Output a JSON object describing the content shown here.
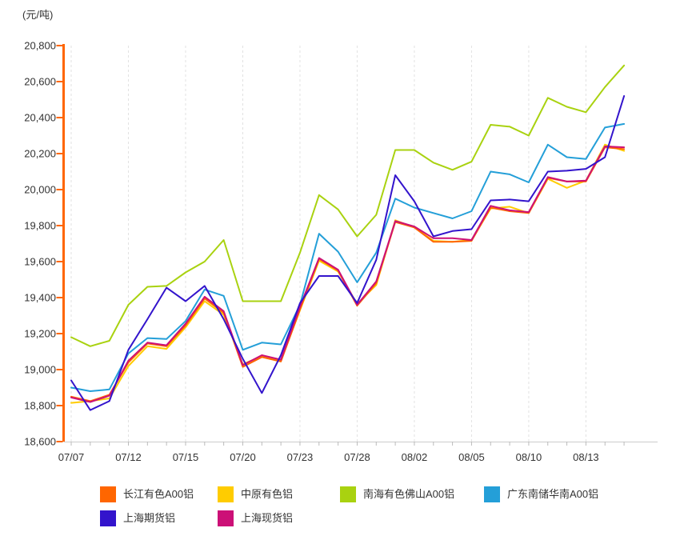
{
  "chart_data": {
    "type": "line",
    "unit_label": "(元/吨)",
    "x": [
      "07/07",
      "07/08",
      "07/09",
      "07/12",
      "07/13",
      "07/14",
      "07/15",
      "07/16",
      "07/19",
      "07/20",
      "07/21",
      "07/22",
      "07/23",
      "07/26",
      "07/27",
      "07/28",
      "07/29",
      "07/30",
      "08/02",
      "08/03",
      "08/04",
      "08/05",
      "08/06",
      "08/09",
      "08/10",
      "08/11",
      "08/12",
      "08/13",
      "08/16",
      "08/17"
    ],
    "x_tick_labels": [
      "07/07",
      "07/12",
      "07/15",
      "07/20",
      "07/23",
      "07/28",
      "08/02",
      "08/05",
      "08/10",
      "08/13"
    ],
    "x_tick_indices": [
      0,
      3,
      6,
      9,
      12,
      15,
      18,
      21,
      24,
      27
    ],
    "y_tick_labels": [
      "20,800",
      "20,600",
      "20,400",
      "20,200",
      "20,000",
      "19,800",
      "19,600",
      "19,400",
      "19,200",
      "19,000",
      "18,800",
      "18,600"
    ],
    "ylim": [
      18600,
      20800
    ],
    "ytick_step": 200,
    "grid": "vertical-dashed",
    "axis_color": "#ff6600",
    "legend_position": "bottom-left",
    "series": [
      {
        "name": "长江有色A00铝",
        "color": "#ff6600",
        "values": [
          18850,
          18825,
          18860,
          19040,
          19145,
          19130,
          19245,
          19395,
          19315,
          19015,
          19070,
          19045,
          19335,
          19615,
          19550,
          19355,
          19480,
          19820,
          19790,
          19710,
          19710,
          19715,
          19900,
          19880,
          19870,
          20065,
          20045,
          20045,
          20235,
          20225
        ]
      },
      {
        "name": "中原有色铝",
        "color": "#ffcc00",
        "values": [
          18815,
          18825,
          18840,
          19020,
          19130,
          19115,
          19235,
          19380,
          19305,
          19030,
          19075,
          19050,
          19330,
          19605,
          19545,
          19365,
          19470,
          19830,
          19790,
          19715,
          19710,
          19720,
          19895,
          19905,
          19870,
          20060,
          20010,
          20050,
          20250,
          20215
        ]
      },
      {
        "name": "南海有色佛山A00铝",
        "color": "#a9d210",
        "values": [
          19180,
          19130,
          19160,
          19360,
          19460,
          19465,
          19540,
          19600,
          19720,
          19380,
          19380,
          19380,
          19650,
          19970,
          19890,
          19740,
          19860,
          20220,
          20220,
          20150,
          20110,
          20155,
          20360,
          20350,
          20300,
          20510,
          20460,
          20430,
          20570,
          20690
        ]
      },
      {
        "name": "广东南储华南A00铝",
        "color": "#249fd8",
        "values": [
          18900,
          18880,
          18890,
          19090,
          19175,
          19170,
          19270,
          19445,
          19410,
          19110,
          19150,
          19140,
          19360,
          19755,
          19655,
          19485,
          19650,
          19950,
          19900,
          19870,
          19840,
          19880,
          20100,
          20085,
          20040,
          20250,
          20180,
          20170,
          20345,
          20365
        ]
      },
      {
        "name": "上海期货铝",
        "color": "#3314cc",
        "values": [
          18940,
          18775,
          18825,
          19110,
          19280,
          19455,
          19380,
          19465,
          19280,
          19060,
          18870,
          19080,
          19370,
          19520,
          19520,
          19370,
          19610,
          20080,
          19935,
          19740,
          19770,
          19780,
          19940,
          19945,
          19935,
          20100,
          20105,
          20115,
          20180,
          20520
        ]
      },
      {
        "name": "上海现货铝",
        "color": "#cc1077",
        "values": [
          18845,
          18820,
          18855,
          19050,
          19150,
          19135,
          19255,
          19405,
          19325,
          19025,
          19080,
          19055,
          19350,
          19620,
          19555,
          19360,
          19490,
          19825,
          19795,
          19730,
          19730,
          19720,
          19910,
          19885,
          19875,
          20070,
          20045,
          20050,
          20240,
          20235
        ]
      }
    ]
  }
}
